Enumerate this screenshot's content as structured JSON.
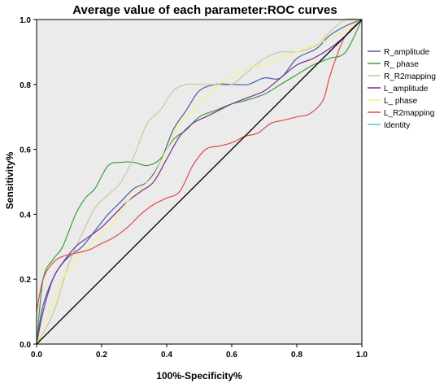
{
  "chart_data": {
    "type": "line",
    "title": "Average value of each parameter:ROC curves",
    "xlabel": "100%-Specificity%",
    "ylabel": "Sensitivity%",
    "xlim": [
      0,
      1
    ],
    "ylim": [
      0,
      1
    ],
    "x_ticks": [
      "0.0",
      "0.2",
      "0.4",
      "0.6",
      "0.8",
      "1.0"
    ],
    "y_ticks": [
      "0.0",
      "0.2",
      "0.4",
      "0.6",
      "0.8",
      "1.0"
    ],
    "grid": false,
    "legend_position": "right",
    "plot_background": "#ebebeb",
    "series": [
      {
        "name": "R_amplitude",
        "color": "#4a5ca6",
        "points": [
          [
            0,
            0
          ],
          [
            0.02,
            0.12
          ],
          [
            0.06,
            0.22
          ],
          [
            0.1,
            0.27
          ],
          [
            0.14,
            0.3
          ],
          [
            0.18,
            0.35
          ],
          [
            0.22,
            0.4
          ],
          [
            0.26,
            0.44
          ],
          [
            0.3,
            0.48
          ],
          [
            0.34,
            0.5
          ],
          [
            0.38,
            0.56
          ],
          [
            0.42,
            0.66
          ],
          [
            0.46,
            0.72
          ],
          [
            0.5,
            0.78
          ],
          [
            0.55,
            0.8
          ],
          [
            0.6,
            0.8
          ],
          [
            0.65,
            0.8
          ],
          [
            0.7,
            0.82
          ],
          [
            0.75,
            0.82
          ],
          [
            0.8,
            0.88
          ],
          [
            0.86,
            0.91
          ],
          [
            0.9,
            0.95
          ],
          [
            0.95,
            0.98
          ],
          [
            1,
            1
          ]
        ]
      },
      {
        "name": "R_ phase",
        "color": "#3aa03a",
        "points": [
          [
            0,
            0
          ],
          [
            0.02,
            0.2
          ],
          [
            0.05,
            0.26
          ],
          [
            0.08,
            0.3
          ],
          [
            0.12,
            0.4
          ],
          [
            0.15,
            0.45
          ],
          [
            0.18,
            0.48
          ],
          [
            0.22,
            0.55
          ],
          [
            0.26,
            0.56
          ],
          [
            0.3,
            0.56
          ],
          [
            0.34,
            0.55
          ],
          [
            0.38,
            0.57
          ],
          [
            0.42,
            0.63
          ],
          [
            0.46,
            0.66
          ],
          [
            0.5,
            0.7
          ],
          [
            0.55,
            0.72
          ],
          [
            0.6,
            0.74
          ],
          [
            0.64,
            0.75
          ],
          [
            0.7,
            0.77
          ],
          [
            0.75,
            0.8
          ],
          [
            0.8,
            0.83
          ],
          [
            0.85,
            0.86
          ],
          [
            0.9,
            0.88
          ],
          [
            0.95,
            0.9
          ],
          [
            1,
            1
          ]
        ]
      },
      {
        "name": "R_R2mapping",
        "color": "#c9c89e",
        "points": [
          [
            0,
            0
          ],
          [
            0.03,
            0.05
          ],
          [
            0.06,
            0.12
          ],
          [
            0.1,
            0.25
          ],
          [
            0.14,
            0.34
          ],
          [
            0.18,
            0.42
          ],
          [
            0.22,
            0.46
          ],
          [
            0.26,
            0.5
          ],
          [
            0.3,
            0.58
          ],
          [
            0.34,
            0.68
          ],
          [
            0.38,
            0.72
          ],
          [
            0.42,
            0.78
          ],
          [
            0.46,
            0.8
          ],
          [
            0.5,
            0.8
          ],
          [
            0.55,
            0.8
          ],
          [
            0.6,
            0.8
          ],
          [
            0.65,
            0.84
          ],
          [
            0.7,
            0.88
          ],
          [
            0.75,
            0.9
          ],
          [
            0.8,
            0.9
          ],
          [
            0.86,
            0.92
          ],
          [
            0.9,
            0.96
          ],
          [
            0.95,
            1
          ],
          [
            1,
            1
          ]
        ]
      },
      {
        "name": "L_amplitude",
        "color": "#7b2d92",
        "points": [
          [
            0,
            0
          ],
          [
            0.02,
            0.1
          ],
          [
            0.05,
            0.2
          ],
          [
            0.08,
            0.25
          ],
          [
            0.12,
            0.3
          ],
          [
            0.16,
            0.33
          ],
          [
            0.2,
            0.36
          ],
          [
            0.24,
            0.4
          ],
          [
            0.28,
            0.44
          ],
          [
            0.32,
            0.47
          ],
          [
            0.36,
            0.5
          ],
          [
            0.4,
            0.57
          ],
          [
            0.44,
            0.64
          ],
          [
            0.48,
            0.68
          ],
          [
            0.52,
            0.7
          ],
          [
            0.56,
            0.72
          ],
          [
            0.6,
            0.74
          ],
          [
            0.65,
            0.76
          ],
          [
            0.7,
            0.78
          ],
          [
            0.75,
            0.82
          ],
          [
            0.8,
            0.86
          ],
          [
            0.85,
            0.88
          ],
          [
            0.9,
            0.91
          ],
          [
            0.95,
            0.95
          ],
          [
            1,
            1
          ]
        ]
      },
      {
        "name": "L_ phase",
        "color": "#f7f27c",
        "points": [
          [
            0,
            0
          ],
          [
            0.04,
            0.1
          ],
          [
            0.08,
            0.2
          ],
          [
            0.12,
            0.26
          ],
          [
            0.16,
            0.3
          ],
          [
            0.2,
            0.34
          ],
          [
            0.24,
            0.38
          ],
          [
            0.28,
            0.44
          ],
          [
            0.32,
            0.48
          ],
          [
            0.36,
            0.52
          ],
          [
            0.4,
            0.6
          ],
          [
            0.44,
            0.68
          ],
          [
            0.48,
            0.72
          ],
          [
            0.52,
            0.76
          ],
          [
            0.56,
            0.8
          ],
          [
            0.6,
            0.82
          ],
          [
            0.65,
            0.85
          ],
          [
            0.7,
            0.86
          ],
          [
            0.75,
            0.88
          ],
          [
            0.8,
            0.9
          ],
          [
            0.85,
            0.92
          ],
          [
            0.9,
            0.94
          ],
          [
            0.95,
            0.97
          ],
          [
            1,
            1
          ]
        ]
      },
      {
        "name": "L_R2mapping",
        "color": "#e04b4b",
        "points": [
          [
            0,
            0.1
          ],
          [
            0.02,
            0.2
          ],
          [
            0.05,
            0.25
          ],
          [
            0.08,
            0.27
          ],
          [
            0.12,
            0.28
          ],
          [
            0.16,
            0.29
          ],
          [
            0.2,
            0.31
          ],
          [
            0.24,
            0.33
          ],
          [
            0.28,
            0.36
          ],
          [
            0.32,
            0.4
          ],
          [
            0.36,
            0.43
          ],
          [
            0.4,
            0.45
          ],
          [
            0.44,
            0.47
          ],
          [
            0.48,
            0.55
          ],
          [
            0.52,
            0.6
          ],
          [
            0.56,
            0.61
          ],
          [
            0.6,
            0.62
          ],
          [
            0.64,
            0.64
          ],
          [
            0.68,
            0.65
          ],
          [
            0.72,
            0.68
          ],
          [
            0.76,
            0.69
          ],
          [
            0.8,
            0.7
          ],
          [
            0.84,
            0.71
          ],
          [
            0.88,
            0.75
          ],
          [
            0.9,
            0.82
          ],
          [
            0.92,
            0.88
          ],
          [
            0.95,
            0.95
          ],
          [
            1,
            1
          ]
        ]
      },
      {
        "name": "Identity",
        "color": "#000000",
        "legend_color": "#5bc0de",
        "points": [
          [
            0,
            0
          ],
          [
            1,
            1
          ]
        ]
      }
    ]
  }
}
